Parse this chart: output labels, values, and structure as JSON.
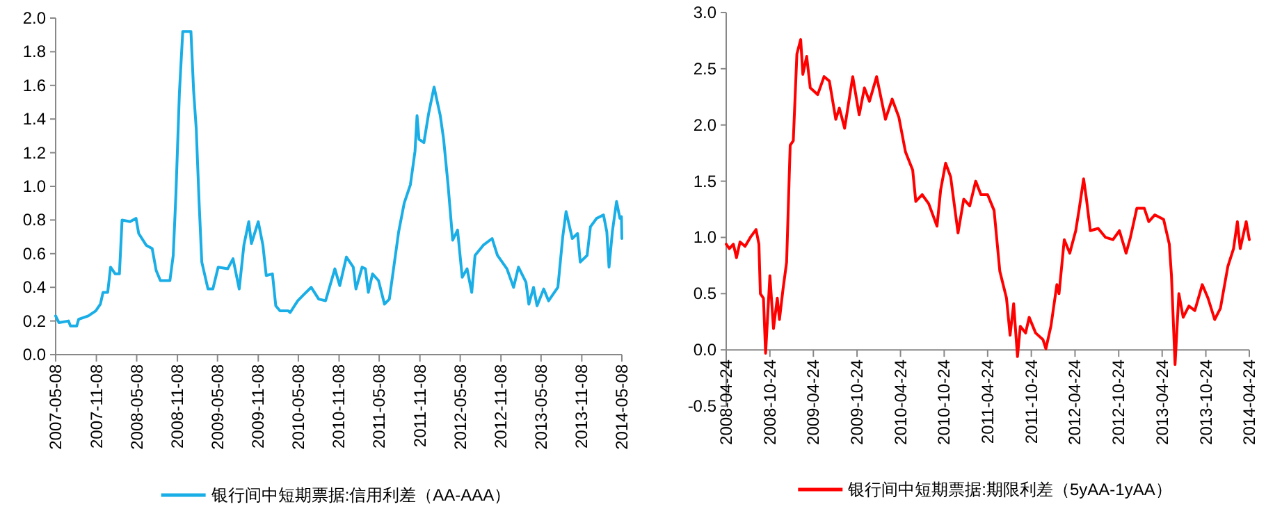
{
  "chart_data": [
    {
      "type": "line",
      "legend": "bottom",
      "xlim": [
        "2007-05-08",
        "2014-05-08"
      ],
      "ylim": [
        0,
        2.0
      ],
      "xticks": [
        "2007-05-08",
        "2007-11-08",
        "2008-05-08",
        "2008-11-08",
        "2009-05-08",
        "2009-11-08",
        "2010-05-08",
        "2010-11-08",
        "2011-05-08",
        "2011-11-08",
        "2012-05-08",
        "2012-11-08",
        "2013-05-08",
        "2013-11-08",
        "2014-05-08"
      ],
      "yticks": [
        {
          "value": 0,
          "label": "0.0"
        },
        {
          "value": 0.2,
          "label": "0.2"
        },
        {
          "value": 0.4,
          "label": "0.4"
        },
        {
          "value": 0.6,
          "label": "0.6"
        },
        {
          "value": 0.8,
          "label": "0.8"
        },
        {
          "value": 1.0,
          "label": "1.0"
        },
        {
          "value": 1.2,
          "label": "1.2"
        },
        {
          "value": 1.4,
          "label": "1.4"
        },
        {
          "value": 1.6,
          "label": "1.6"
        },
        {
          "value": 1.8,
          "label": "1.8"
        },
        {
          "value": 2.0,
          "label": "2.0"
        }
      ],
      "series": [
        {
          "name": "银行间中短期票据:信用利差（AA-AAA）",
          "color": "#1aaee6",
          "x": [
            "2007-05-08",
            "2007-05-23",
            "2007-07-05",
            "2007-07-14",
            "2007-08-11",
            "2007-08-20",
            "2007-10-02",
            "2007-11-05",
            "2007-11-26",
            "2007-12-08",
            "2007-12-29",
            "2008-01-11",
            "2008-02-01",
            "2008-02-20",
            "2008-03-03",
            "2008-04-08",
            "2008-05-05",
            "2008-05-17",
            "2008-06-20",
            "2008-07-17",
            "2008-08-04",
            "2008-08-23",
            "2008-10-05",
            "2008-10-20",
            "2008-11-01",
            "2008-11-17",
            "2008-12-02",
            "2009-01-08",
            "2009-01-20",
            "2009-02-01",
            "2009-02-14",
            "2009-02-26",
            "2009-03-26",
            "2009-04-17",
            "2009-05-11",
            "2009-06-23",
            "2009-07-17",
            "2009-08-14",
            "2009-09-04",
            "2009-09-26",
            "2009-10-08",
            "2009-11-08",
            "2009-11-29",
            "2009-12-14",
            "2010-01-11",
            "2010-01-26",
            "2010-02-14",
            "2010-03-23",
            "2010-04-01",
            "2010-05-05",
            "2010-06-04",
            "2010-07-05",
            "2010-08-08",
            "2010-09-08",
            "2010-10-20",
            "2010-11-11",
            "2010-12-11",
            "2011-01-11",
            "2011-01-23",
            "2011-02-20",
            "2011-03-07",
            "2011-03-20",
            "2011-04-08",
            "2011-05-05",
            "2011-06-01",
            "2011-06-23",
            "2011-08-04",
            "2011-08-29",
            "2011-09-26",
            "2011-10-17",
            "2011-10-26",
            "2011-11-04",
            "2011-11-26",
            "2011-12-17",
            "2012-01-11",
            "2012-02-08",
            "2012-02-23",
            "2012-03-14",
            "2012-04-04",
            "2012-04-26",
            "2012-05-17",
            "2012-06-08",
            "2012-06-29",
            "2012-07-14",
            "2012-08-20",
            "2012-09-29",
            "2012-10-23",
            "2012-12-05",
            "2013-01-04",
            "2013-01-26",
            "2013-03-01",
            "2013-03-14",
            "2013-04-04",
            "2013-04-20",
            "2013-05-20",
            "2013-06-11",
            "2013-07-23",
            "2013-08-14",
            "2013-08-29",
            "2013-09-26",
            "2013-10-20",
            "2013-11-01",
            "2013-12-02",
            "2013-12-17",
            "2014-01-14",
            "2014-02-14",
            "2014-03-01",
            "2014-03-11",
            "2014-03-26",
            "2014-04-14",
            "2014-04-29",
            "2014-05-06",
            "2014-05-08"
          ],
          "values": [
            0.23,
            0.19,
            0.2,
            0.17,
            0.17,
            0.21,
            0.23,
            0.26,
            0.3,
            0.37,
            0.37,
            0.52,
            0.48,
            0.48,
            0.8,
            0.79,
            0.81,
            0.72,
            0.65,
            0.63,
            0.5,
            0.44,
            0.44,
            0.59,
            0.95,
            1.56,
            1.92,
            1.92,
            1.57,
            1.34,
            0.9,
            0.55,
            0.39,
            0.39,
            0.52,
            0.51,
            0.57,
            0.39,
            0.65,
            0.79,
            0.66,
            0.79,
            0.65,
            0.47,
            0.48,
            0.29,
            0.26,
            0.26,
            0.25,
            0.32,
            0.36,
            0.4,
            0.33,
            0.32,
            0.51,
            0.41,
            0.58,
            0.52,
            0.39,
            0.52,
            0.51,
            0.37,
            0.48,
            0.44,
            0.3,
            0.33,
            0.73,
            0.9,
            1.01,
            1.21,
            1.42,
            1.28,
            1.26,
            1.43,
            1.59,
            1.42,
            1.28,
            1.01,
            0.68,
            0.74,
            0.46,
            0.51,
            0.37,
            0.59,
            0.65,
            0.69,
            0.59,
            0.51,
            0.4,
            0.52,
            0.43,
            0.3,
            0.4,
            0.29,
            0.39,
            0.32,
            0.4,
            0.7,
            0.85,
            0.69,
            0.72,
            0.55,
            0.59,
            0.76,
            0.81,
            0.83,
            0.73,
            0.52,
            0.73,
            0.91,
            0.81,
            0.82,
            0.69
          ]
        }
      ]
    },
    {
      "type": "line",
      "legend": "bottom",
      "xlim": [
        "2008-04-24",
        "2014-04-24"
      ],
      "ylim": [
        -0.5,
        3.0
      ],
      "xticks": [
        "2008-04-24",
        "2008-10-24",
        "2009-04-24",
        "2009-10-24",
        "2010-04-24",
        "2010-10-24",
        "2011-04-24",
        "2011-10-24",
        "2012-04-24",
        "2012-10-24",
        "2013-04-24",
        "2013-10-24",
        "2014-04-24"
      ],
      "yticks": [
        -0.5,
        {
          "value": 0,
          "label": "0.0"
        },
        0.5,
        {
          "value": 1.0,
          "label": "1.0"
        },
        1.5,
        {
          "value": 2.0,
          "label": "2.0"
        },
        2.5,
        {
          "value": 3.0,
          "label": "3.0"
        }
      ],
      "series": [
        {
          "name": "银行间中短期票据:期限利差（5yAA-1yAA）",
          "color": "#ff0000",
          "x": [
            "2008-04-24",
            "2008-05-07",
            "2008-05-24",
            "2008-06-06",
            "2008-06-21",
            "2008-07-12",
            "2008-08-03",
            "2008-08-27",
            "2008-09-08",
            "2008-09-14",
            "2008-09-27",
            "2008-10-06",
            "2008-10-24",
            "2008-11-08",
            "2008-11-24",
            "2008-12-03",
            "2008-12-18",
            "2009-01-02",
            "2009-01-17",
            "2009-01-30",
            "2009-02-14",
            "2009-03-02",
            "2009-03-11",
            "2009-03-27",
            "2009-04-11",
            "2009-05-12",
            "2009-06-08",
            "2009-06-30",
            "2009-07-27",
            "2009-08-11",
            "2009-09-02",
            "2009-10-06",
            "2009-11-02",
            "2009-11-24",
            "2009-12-15",
            "2010-01-14",
            "2010-02-20",
            "2010-03-20",
            "2010-04-17",
            "2010-05-15",
            "2010-06-14",
            "2010-06-27",
            "2010-07-24",
            "2010-08-20",
            "2010-09-24",
            "2010-10-09",
            "2010-10-30",
            "2010-11-20",
            "2010-12-21",
            "2011-01-14",
            "2011-02-08",
            "2011-03-05",
            "2011-03-27",
            "2011-04-24",
            "2011-05-21",
            "2011-06-14",
            "2011-07-12",
            "2011-07-27",
            "2011-08-11",
            "2011-08-27",
            "2011-09-08",
            "2011-09-30",
            "2011-10-15",
            "2011-11-11",
            "2011-12-12",
            "2011-12-24",
            "2012-01-14",
            "2012-02-08",
            "2012-02-17",
            "2012-03-10",
            "2012-04-02",
            "2012-04-27",
            "2012-05-12",
            "2012-05-30",
            "2012-06-11",
            "2012-06-27",
            "2012-07-30",
            "2012-08-30",
            "2012-09-30",
            "2012-10-27",
            "2012-11-24",
            "2012-12-12",
            "2013-01-08",
            "2013-02-08",
            "2013-02-27",
            "2013-03-24",
            "2013-04-30",
            "2013-05-24",
            "2013-06-02",
            "2013-06-17",
            "2013-07-03",
            "2013-07-21",
            "2013-08-14",
            "2013-09-08",
            "2013-10-09",
            "2013-11-02",
            "2013-11-30",
            "2013-12-24",
            "2014-01-24",
            "2014-02-17",
            "2014-03-05",
            "2014-03-17",
            "2014-04-11",
            "2014-04-24"
          ],
          "values": [
            0.94,
            0.9,
            0.94,
            0.82,
            0.96,
            0.92,
            1.0,
            1.07,
            0.94,
            0.5,
            0.46,
            -0.03,
            0.66,
            0.19,
            0.46,
            0.27,
            0.54,
            0.78,
            1.82,
            1.86,
            2.63,
            2.76,
            2.45,
            2.61,
            2.33,
            2.27,
            2.43,
            2.39,
            2.05,
            2.15,
            1.97,
            2.43,
            2.09,
            2.33,
            2.21,
            2.43,
            2.05,
            2.23,
            2.07,
            1.76,
            1.6,
            1.32,
            1.38,
            1.3,
            1.1,
            1.42,
            1.66,
            1.54,
            1.04,
            1.34,
            1.28,
            1.5,
            1.38,
            1.38,
            1.24,
            0.7,
            0.46,
            0.13,
            0.41,
            -0.06,
            0.21,
            0.15,
            0.29,
            0.15,
            0.09,
            0.01,
            0.21,
            0.58,
            0.5,
            0.98,
            0.86,
            1.06,
            1.26,
            1.52,
            1.34,
            1.06,
            1.08,
            1.0,
            0.98,
            1.06,
            0.86,
            1.0,
            1.26,
            1.26,
            1.14,
            1.2,
            1.16,
            0.94,
            0.66,
            -0.13,
            0.5,
            0.29,
            0.39,
            0.35,
            0.58,
            0.46,
            0.27,
            0.37,
            0.74,
            0.9,
            1.14,
            0.9,
            1.14,
            0.98
          ]
        }
      ]
    }
  ]
}
